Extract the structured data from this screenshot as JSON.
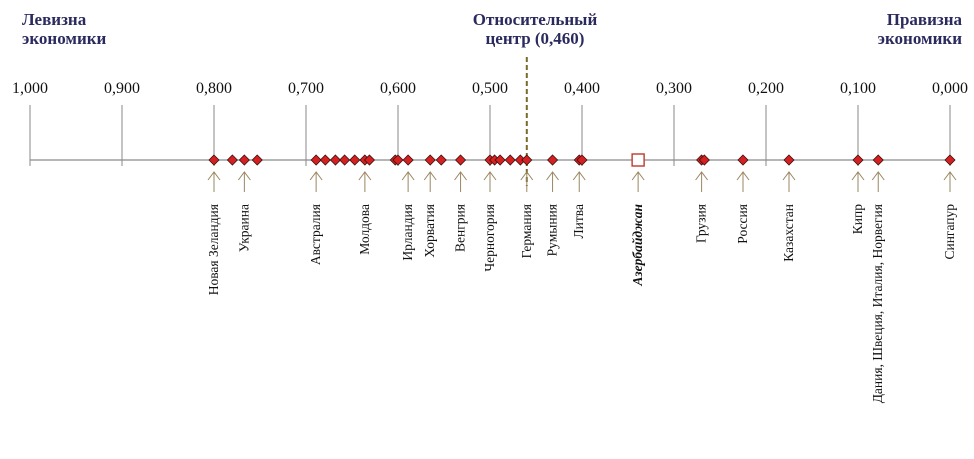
{
  "chart_data": {
    "type": "scatter",
    "header_left": [
      "Левизна",
      "экономики"
    ],
    "header_center": [
      "Относительный",
      "центр (0,460)"
    ],
    "header_right": [
      "Правизна",
      "экономики"
    ],
    "x_range": [
      1.0,
      0.0
    ],
    "x_reversed": true,
    "center_value": 0.46,
    "tick_values": [
      1.0,
      0.9,
      0.8,
      0.7,
      0.6,
      0.5,
      0.4,
      0.3,
      0.2,
      0.1,
      0.0
    ],
    "tick_labels": [
      "1,000",
      "0,900",
      "0,800",
      "0,700",
      "0,600",
      "0,500",
      "0,400",
      "0,300",
      "0,200",
      "0,100",
      "0,000"
    ],
    "points": [
      0.8,
      0.78,
      0.767,
      0.753,
      0.689,
      0.679,
      0.668,
      0.658,
      0.647,
      0.636,
      0.631,
      0.603,
      0.6,
      0.589,
      0.565,
      0.553,
      0.532,
      0.5,
      0.495,
      0.489,
      0.478,
      0.467,
      0.46,
      0.432,
      0.403,
      0.4,
      0.339,
      0.27,
      0.267,
      0.225,
      0.175,
      0.1,
      0.078,
      0.0
    ],
    "highlight": {
      "label": "Азербайджан",
      "value": 0.339
    },
    "annotations": [
      {
        "label": "Новая Зеландия",
        "value": 0.8
      },
      {
        "label": "Украина",
        "value": 0.767
      },
      {
        "label": "Австралия",
        "value": 0.689
      },
      {
        "label": "Молдова",
        "value": 0.636
      },
      {
        "label": "Ирландия",
        "value": 0.589
      },
      {
        "label": "Хорватия",
        "value": 0.565
      },
      {
        "label": "Венгрия",
        "value": 0.532
      },
      {
        "label": "Черногория",
        "value": 0.5
      },
      {
        "label": "Германия",
        "value": 0.46
      },
      {
        "label": "Румыния",
        "value": 0.432
      },
      {
        "label": "Литва",
        "value": 0.403
      },
      {
        "label": "Азербайджан",
        "value": 0.339,
        "emphasis": true
      },
      {
        "label": "Грузия",
        "value": 0.27
      },
      {
        "label": "Россия",
        "value": 0.225
      },
      {
        "label": "Казахстан",
        "value": 0.175
      },
      {
        "label": "Кипр",
        "value": 0.1
      },
      {
        "label": "Дания, Швеция, Италия, Норвегия",
        "value": 0.078
      },
      {
        "label": "Сингапур",
        "value": 0.0
      }
    ],
    "colors": {
      "header": "#2b2a5e",
      "marker_fill": "#d42020",
      "marker_stroke": "#3a1010",
      "arrow": "#9a8660",
      "axis": "#8a8a8a",
      "center_line": "#7a6a2a",
      "highlight_stroke": "#c0392b"
    }
  }
}
